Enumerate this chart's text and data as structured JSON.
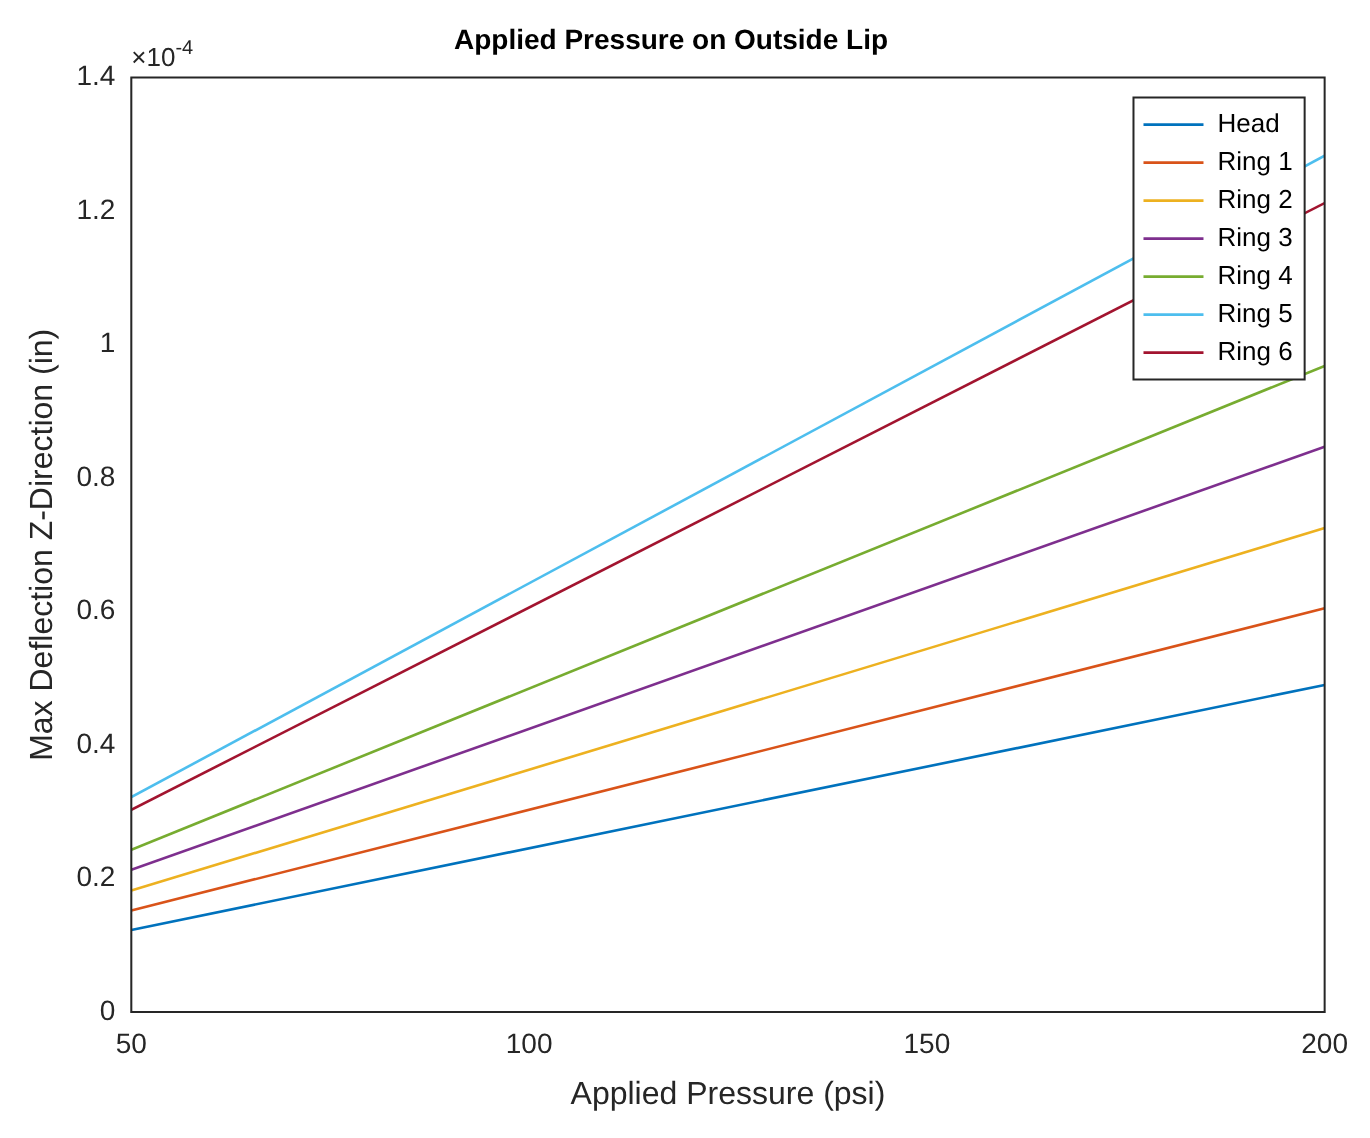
{
  "chart_data": {
    "type": "line",
    "title": "Applied Pressure on Outside Lip",
    "xlabel": "Applied Pressure (psi)",
    "ylabel": "Max Deflection Z-Direction (in)",
    "annotations": [
      "×10$^{-4}$"
    ],
    "x": [
      50,
      200
    ],
    "series": [
      {
        "name": "Head",
        "color": "#0072bd",
        "values": [
          0.123,
          0.49
        ]
      },
      {
        "name": "Ring 1",
        "color": "#d95319",
        "values": [
          0.152,
          0.605
        ]
      },
      {
        "name": "Ring 2",
        "color": "#edb120",
        "values": [
          0.182,
          0.725
        ]
      },
      {
        "name": "Ring 3",
        "color": "#7e2f8e",
        "values": [
          0.213,
          0.847
        ]
      },
      {
        "name": "Ring 4",
        "color": "#77ac30",
        "values": [
          0.243,
          0.968
        ]
      },
      {
        "name": "Ring 5",
        "color": "#4dbeee",
        "values": [
          0.322,
          1.283
        ]
      },
      {
        "name": "Ring 6",
        "color": "#a2142f",
        "values": [
          0.303,
          1.212
        ]
      }
    ],
    "xlim": [
      50,
      200
    ],
    "xticks": [
      50,
      100,
      150,
      200
    ],
    "ylim": [
      0,
      1.4
    ],
    "yticks": [
      0,
      0.2,
      0.4,
      0.6,
      0.8,
      1,
      1.2,
      1.4
    ],
    "grid": false,
    "legend": "top right",
    "marker": "none",
    "line_style": "solid"
  }
}
